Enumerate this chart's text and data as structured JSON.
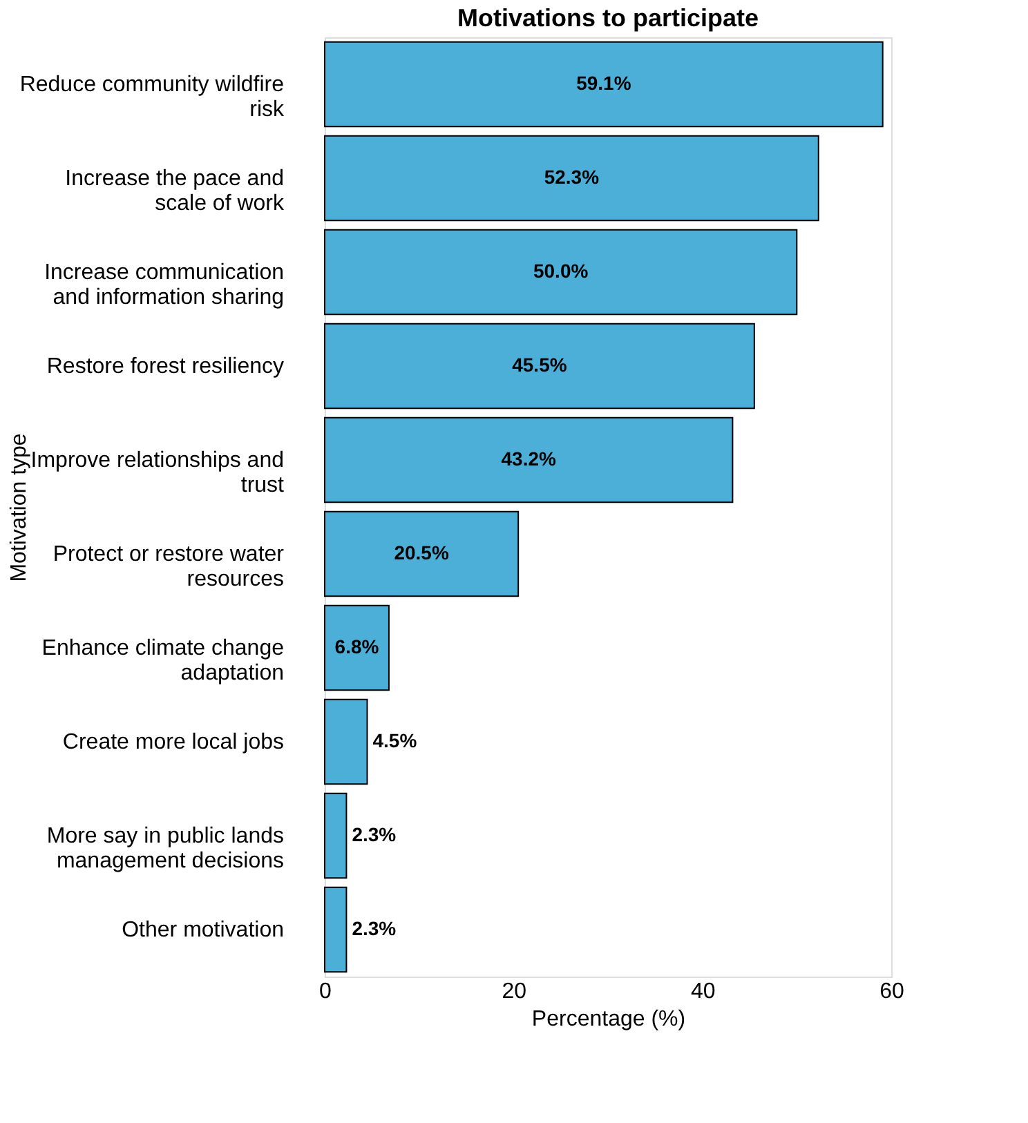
{
  "chart_data": {
    "type": "bar",
    "orientation": "horizontal",
    "title": "Motivations to participate",
    "xlabel": "Percentage (%)",
    "ylabel": "Motivation type",
    "categories": [
      "Reduce community wildfire risk",
      "Increase the pace and scale of work",
      "Increase communication and information sharing",
      "Restore forest resiliency",
      "Improve relationships and trust",
      "Protect or restore water resources",
      "Enhance climate change adaptation",
      "Create more local jobs",
      "More say in public lands management decisions",
      "Other motivation"
    ],
    "values": [
      59.1,
      52.3,
      50.0,
      45.5,
      43.2,
      20.5,
      6.8,
      4.5,
      2.3,
      2.3
    ],
    "value_labels": [
      "59.1%",
      "52.3%",
      "50.0%",
      "45.5%",
      "43.2%",
      "20.5%",
      "6.8%",
      "4.5%",
      "2.3%",
      "2.3%"
    ],
    "color": "#4bafd8",
    "xlim": [
      0,
      60
    ],
    "xticks": [
      0,
      20,
      40,
      60
    ],
    "grid": false
  }
}
